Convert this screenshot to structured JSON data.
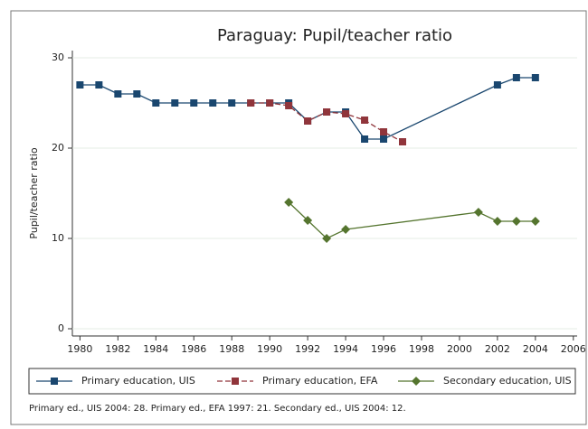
{
  "chart_data": {
    "type": "line",
    "title": "Paraguay: Pupil/teacher ratio",
    "y_label": "Pupil/teacher ratio",
    "note": "Primary ed., UIS 2004: 28. Primary ed., EFA 1997: 21. Secondary ed., UIS 2004: 12.",
    "xlim": [
      1979.6,
      2006.2
    ],
    "xticks": [
      1980,
      1982,
      1984,
      1986,
      1988,
      1990,
      1992,
      1994,
      1996,
      1998,
      2000,
      2002,
      2004,
      2006
    ],
    "ylim": [
      0,
      30
    ],
    "yticks": [
      0,
      10,
      20,
      30
    ],
    "grid": true,
    "series": [
      {
        "name": "Primary education, UIS",
        "color": "#1a476f",
        "marker": "square",
        "line_style": "solid",
        "x": [
          1980,
          1981,
          1982,
          1983,
          1984,
          1985,
          1986,
          1987,
          1988,
          1989,
          1990,
          1991,
          1992,
          1993,
          1994,
          1995,
          1996,
          2002,
          2003,
          2004
        ],
        "values": [
          27,
          27,
          26,
          26,
          25,
          25,
          25,
          25,
          25,
          25,
          25,
          25,
          23,
          24,
          24,
          21,
          21,
          27,
          27.8,
          27.8
        ]
      },
      {
        "name": "Primary education, EFA",
        "color": "#90353b",
        "marker": "square",
        "line_style": "dashed",
        "x": [
          1989,
          1990,
          1991,
          1992,
          1993,
          1994,
          1995,
          1996,
          1997
        ],
        "values": [
          25,
          25,
          24.7,
          23,
          24,
          23.8,
          23.1,
          21.8,
          20.7
        ]
      },
      {
        "name": "Secondary education, UIS",
        "color": "#55752f",
        "marker": "diamond",
        "line_style": "solid",
        "x": [
          1991,
          1992,
          1993,
          1994,
          2001,
          2002,
          2003,
          2004
        ],
        "values": [
          14,
          12,
          10,
          11,
          12.9,
          11.9,
          11.9,
          11.9
        ]
      }
    ]
  }
}
